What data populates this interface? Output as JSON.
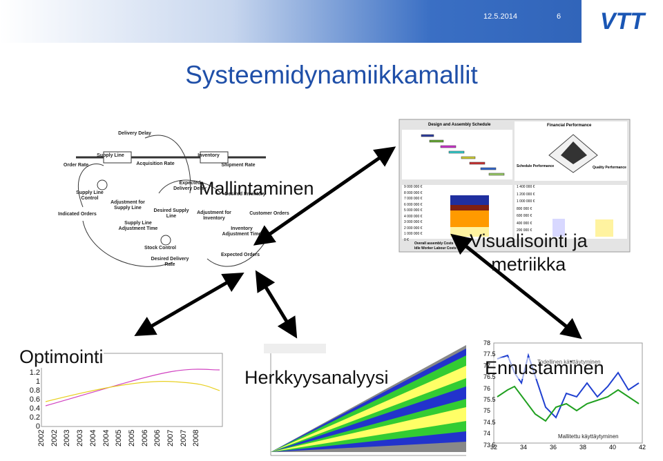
{
  "header": {
    "date": "12.5.2014",
    "page_number": "6",
    "logo": "VTT"
  },
  "title": "Systeemidynamiikkamallit",
  "labels": {
    "modeling": "Mallintaminen",
    "visualization": [
      "Visualisointi ja",
      "metriikka"
    ],
    "optimization": "Optimointi",
    "sensitivity": "Herkkyysanalyysi",
    "forecasting": "Ennustaminen"
  },
  "stock_flow_diagram": {
    "variables": [
      "Delivery Delay",
      "Supply Line",
      "Acquisition Rate",
      "Inventory",
      "Shipment Rate",
      "Order Rate",
      "Supply Line Control",
      "Adjustment for Supply Line",
      "Desired Supply Line",
      "Expected Delivery Delay",
      "Adjustment for Inventory",
      "Customer Orders",
      "Indicated Orders",
      "Supply Line Adjustment Time",
      "Stock Control",
      "Inventory Adjustment Time",
      "Desired Delivery Rate",
      "Expected Orders",
      "Desired Inventory"
    ]
  },
  "dashboard": {
    "schedule_title": "Design and Assembly Schedule",
    "financial_title": "Financial Performance",
    "axes": [
      "Schedule Performance",
      "Quality Performance"
    ],
    "cost_ticks": [
      "9 000 000 €",
      "8 000 000 €",
      "7 000 000 €",
      "6 000 000 €",
      "5 000 000 €",
      "4 000 000 €",
      "3 000 000 €",
      "2 000 000 €",
      "1 000 000 €",
      "0 €"
    ],
    "profit_ticks": [
      "1 400 000 €",
      "1 200 000 €",
      "1 000 000 €",
      "800 000 €",
      "600 000 €",
      "400 000 €",
      "200 000 €"
    ],
    "legend": [
      "Overall assembly Costs",
      "Idle Worker Labour Costs"
    ]
  },
  "optimization_chart": {
    "yticks": [
      "1.2",
      "1",
      "0.8",
      "0.6",
      "0.4",
      "0.2",
      "0"
    ],
    "xticks": [
      "2002",
      "2002",
      "2003",
      "2003",
      "2004",
      "2004",
      "2005",
      "2005",
      "2006",
      "2006",
      "2007",
      "2007",
      "2008"
    ]
  },
  "forecast_chart": {
    "yticks": [
      "78",
      "77.5",
      "77",
      "76.5",
      "76",
      "75.5",
      "75",
      "74.5",
      "74",
      "73.5"
    ],
    "xticks": [
      "32",
      "34",
      "36",
      "38",
      "40",
      "42"
    ],
    "legend": [
      "Todellinen käyttäytyminen",
      "Mallitettu käyttäytyminen"
    ]
  }
}
